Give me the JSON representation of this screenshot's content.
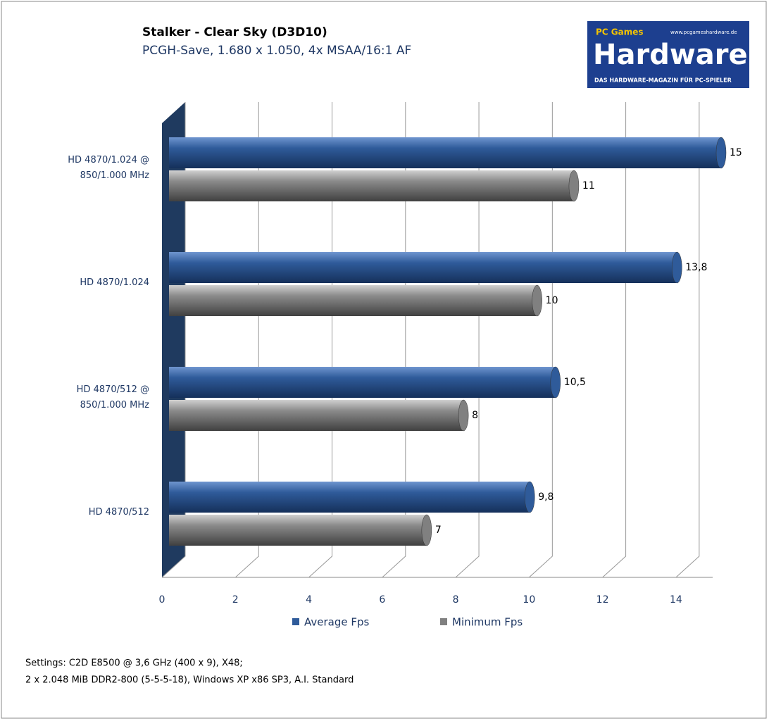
{
  "chart_data": {
    "type": "bar",
    "orientation": "horizontal",
    "title": "Stalker - Clear Sky (D3D10)",
    "subtitle": "PCGH-Save, 1.680 x 1.050, 4x MSAA/16:1 AF",
    "categories": [
      "HD 4870/1.024 @\n850/1.000 MHz",
      "HD 4870/1.024",
      "HD 4870/512 @\n850/1.000 MHz",
      "HD 4870/512"
    ],
    "series": [
      {
        "name": "Average Fps",
        "color": "#2f5b9a",
        "values": [
          15,
          13.8,
          10.5,
          9.8
        ],
        "value_labels": [
          "15",
          "13,8",
          "10,5",
          "9,8"
        ]
      },
      {
        "name": "Minimum Fps",
        "color": "#808080",
        "values": [
          11,
          10,
          8,
          7
        ]
      }
    ],
    "xlim": [
      0,
      15
    ],
    "xticks": [
      0,
      2,
      4,
      6,
      8,
      10,
      12,
      14
    ],
    "grid": true,
    "legend": "bottom",
    "notes": [
      "Settings: C2D E8500 @ 3,6 GHz (400 x 9), X48;",
      "2 x 2.048 MiB DDR2-800 (5-5-5-18), Windows XP x86 SP3, A.I. Standard"
    ]
  },
  "logo": {
    "brand": "PC Games",
    "name": "Hardware",
    "url": "www.pcgameshardware.de",
    "tagline": "DAS HARDWARE-MAGAZIN FÜR PC-SPIELER"
  }
}
